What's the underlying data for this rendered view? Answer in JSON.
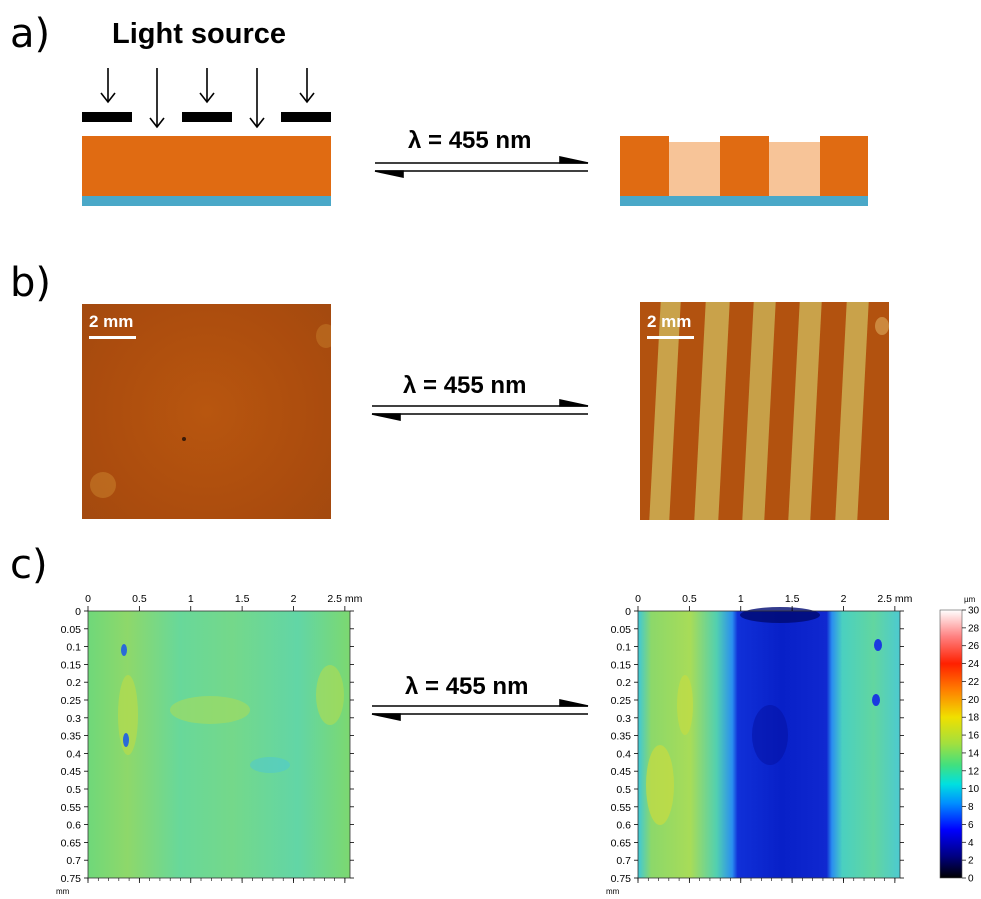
{
  "panel_a": {
    "label": "a)",
    "light_source": "Light source",
    "lambda": "λ = 455 nm"
  },
  "panel_b": {
    "label": "b)",
    "scalebar_left": "2 mm",
    "scalebar_right": "2 mm",
    "lambda": "λ = 455 nm"
  },
  "panel_c": {
    "label": "c)",
    "lambda": "λ = 455 nm",
    "x_ticks": [
      "0",
      "0.5",
      "1",
      "1.5",
      "2",
      "2.5 mm"
    ],
    "y_ticks": [
      "0",
      "0.05",
      "0.1",
      "0.15",
      "0.2",
      "0.25",
      "0.3",
      "0.35",
      "0.4",
      "0.45",
      "0.5",
      "0.55",
      "0.6",
      "0.65",
      "0.7",
      "0.75"
    ],
    "y_unit": "mm",
    "colorbar_unit": "µm",
    "colorbar_ticks": [
      "30",
      "28",
      "26",
      "24",
      "22",
      "20",
      "18",
      "16",
      "14",
      "12",
      "10",
      "8",
      "6",
      "4",
      "2",
      "0"
    ]
  },
  "colors": {
    "film_orange": "#e06b12",
    "film_bleached": "#f7c498",
    "substrate_blue": "#4aa8c8",
    "mask_black": "#000000",
    "photo_orange": "#b4520f",
    "photo_stripe": "#c9a24a"
  }
}
